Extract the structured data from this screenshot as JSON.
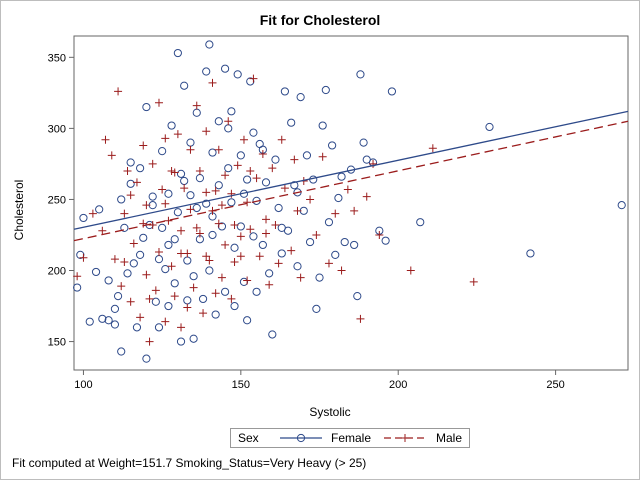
{
  "chart_data": {
    "type": "scatter",
    "title": "Fit for Cholesterol",
    "xlabel": "Systolic",
    "ylabel": "Cholesterol",
    "xlim": [
      97,
      273
    ],
    "ylim": [
      130,
      365
    ],
    "xticks": [
      100,
      150,
      200,
      250
    ],
    "yticks": [
      150,
      200,
      250,
      300,
      350
    ],
    "grid": false,
    "legend": {
      "title": "Sex",
      "placement": "bottom-center",
      "entries": [
        {
          "name": "Female",
          "marker": "circle",
          "line": "solid"
        },
        {
          "name": "Male",
          "marker": "plus",
          "line": "dashed"
        }
      ]
    },
    "colors": {
      "female": "#2e4a8a",
      "male": "#9b1c1c",
      "frame": "#666666"
    },
    "fit_lines": [
      {
        "name": "Female",
        "x": [
          97,
          273
        ],
        "y": [
          229,
          312
        ]
      },
      {
        "name": "Male",
        "x": [
          97,
          273
        ],
        "y": [
          221,
          305
        ]
      }
    ],
    "series": [
      {
        "name": "Female",
        "marker": "circle",
        "points": [
          [
            98,
            188
          ],
          [
            99,
            211
          ],
          [
            100,
            237
          ],
          [
            102,
            164
          ],
          [
            104,
            199
          ],
          [
            105,
            243
          ],
          [
            106,
            166
          ],
          [
            108,
            165
          ],
          [
            108,
            193
          ],
          [
            110,
            162
          ],
          [
            110,
            173
          ],
          [
            111,
            182
          ],
          [
            112,
            143
          ],
          [
            113,
            230
          ],
          [
            114,
            198
          ],
          [
            115,
            261
          ],
          [
            115,
            276
          ],
          [
            116,
            205
          ],
          [
            117,
            160
          ],
          [
            118,
            272
          ],
          [
            119,
            223
          ],
          [
            120,
            315
          ],
          [
            120,
            138
          ],
          [
            121,
            232
          ],
          [
            122,
            246
          ],
          [
            123,
            178
          ],
          [
            124,
            208
          ],
          [
            124,
            160
          ],
          [
            125,
            284
          ],
          [
            125,
            230
          ],
          [
            126,
            201
          ],
          [
            127,
            254
          ],
          [
            127,
            175
          ],
          [
            128,
            302
          ],
          [
            129,
            222
          ],
          [
            129,
            191
          ],
          [
            130,
            353
          ],
          [
            130,
            241
          ],
          [
            131,
            268
          ],
          [
            131,
            150
          ],
          [
            132,
            330
          ],
          [
            133,
            207
          ],
          [
            133,
            179
          ],
          [
            134,
            290
          ],
          [
            134,
            253
          ],
          [
            135,
            196
          ],
          [
            135,
            152
          ],
          [
            136,
            311
          ],
          [
            137,
            265
          ],
          [
            137,
            222
          ],
          [
            138,
            180
          ],
          [
            139,
            340
          ],
          [
            139,
            247
          ],
          [
            140,
            359
          ],
          [
            140,
            200
          ],
          [
            141,
            283
          ],
          [
            141,
            225
          ],
          [
            142,
            169
          ],
          [
            143,
            305
          ],
          [
            143,
            260
          ],
          [
            144,
            231
          ],
          [
            145,
            342
          ],
          [
            145,
            185
          ],
          [
            146,
            272
          ],
          [
            147,
            312
          ],
          [
            147,
            248
          ],
          [
            148,
            216
          ],
          [
            148,
            175
          ],
          [
            149,
            338
          ],
          [
            150,
            281
          ],
          [
            150,
            231
          ],
          [
            151,
            192
          ],
          [
            152,
            264
          ],
          [
            152,
            165
          ],
          [
            153,
            333
          ],
          [
            154,
            297
          ],
          [
            154,
            224
          ],
          [
            155,
            249
          ],
          [
            155,
            185
          ],
          [
            156,
            289
          ],
          [
            157,
            218
          ],
          [
            158,
            262
          ],
          [
            159,
            198
          ],
          [
            160,
            155
          ],
          [
            161,
            278
          ],
          [
            162,
            244
          ],
          [
            163,
            212
          ],
          [
            164,
            326
          ],
          [
            165,
            228
          ],
          [
            166,
            304
          ],
          [
            167,
            260
          ],
          [
            168,
            203
          ],
          [
            169,
            322
          ],
          [
            170,
            242
          ],
          [
            171,
            281
          ],
          [
            172,
            220
          ],
          [
            173,
            264
          ],
          [
            174,
            173
          ],
          [
            175,
            195
          ],
          [
            176,
            302
          ],
          [
            177,
            327
          ],
          [
            178,
            234
          ],
          [
            179,
            288
          ],
          [
            180,
            211
          ],
          [
            181,
            251
          ],
          [
            182,
            266
          ],
          [
            183,
            220
          ],
          [
            185,
            271
          ],
          [
            186,
            218
          ],
          [
            187,
            182
          ],
          [
            188,
            338
          ],
          [
            189,
            290
          ],
          [
            190,
            278
          ],
          [
            192,
            276
          ],
          [
            194,
            228
          ],
          [
            196,
            221
          ],
          [
            198,
            326
          ],
          [
            207,
            234
          ],
          [
            229,
            301
          ],
          [
            242,
            212
          ],
          [
            271,
            246
          ],
          [
            112,
            250
          ],
          [
            118,
            211
          ],
          [
            122,
            252
          ],
          [
            127,
            218
          ],
          [
            132,
            263
          ],
          [
            136,
            244
          ],
          [
            141,
            238
          ],
          [
            146,
            300
          ],
          [
            151,
            254
          ],
          [
            157,
            285
          ],
          [
            163,
            230
          ],
          [
            168,
            255
          ]
        ]
      },
      {
        "name": "Male",
        "marker": "plus",
        "points": [
          [
            98,
            196
          ],
          [
            100,
            209
          ],
          [
            103,
            240
          ],
          [
            106,
            228
          ],
          [
            107,
            292
          ],
          [
            109,
            281
          ],
          [
            110,
            208
          ],
          [
            111,
            326
          ],
          [
            112,
            189
          ],
          [
            113,
            240
          ],
          [
            114,
            270
          ],
          [
            115,
            178
          ],
          [
            116,
            219
          ],
          [
            117,
            262
          ],
          [
            118,
            167
          ],
          [
            119,
            288
          ],
          [
            120,
            246
          ],
          [
            120,
            197
          ],
          [
            121,
            150
          ],
          [
            122,
            275
          ],
          [
            122,
            232
          ],
          [
            123,
            186
          ],
          [
            124,
            318
          ],
          [
            124,
            213
          ],
          [
            125,
            257
          ],
          [
            126,
            164
          ],
          [
            126,
            293
          ],
          [
            127,
            235
          ],
          [
            128,
            203
          ],
          [
            129,
            269
          ],
          [
            129,
            182
          ],
          [
            130,
            296
          ],
          [
            131,
            228
          ],
          [
            131,
            160
          ],
          [
            132,
            258
          ],
          [
            133,
            212
          ],
          [
            134,
            285
          ],
          [
            134,
            243
          ],
          [
            135,
            188
          ],
          [
            136,
            316
          ],
          [
            137,
            270
          ],
          [
            137,
            226
          ],
          [
            138,
            170
          ],
          [
            139,
            298
          ],
          [
            139,
            255
          ],
          [
            140,
            207
          ],
          [
            141,
            332
          ],
          [
            141,
            242
          ],
          [
            142,
            184
          ],
          [
            143,
            285
          ],
          [
            143,
            233
          ],
          [
            144,
            195
          ],
          [
            145,
            267
          ],
          [
            145,
            218
          ],
          [
            146,
            305
          ],
          [
            147,
            254
          ],
          [
            147,
            180
          ],
          [
            148,
            232
          ],
          [
            149,
            274
          ],
          [
            150,
            210
          ],
          [
            151,
            292
          ],
          [
            152,
            248
          ],
          [
            152,
            193
          ],
          [
            153,
            229
          ],
          [
            154,
            335
          ],
          [
            155,
            265
          ],
          [
            156,
            210
          ],
          [
            157,
            282
          ],
          [
            158,
            226
          ],
          [
            159,
            190
          ],
          [
            160,
            272
          ],
          [
            161,
            232
          ],
          [
            162,
            205
          ],
          [
            163,
            292
          ],
          [
            164,
            258
          ],
          [
            166,
            214
          ],
          [
            167,
            278
          ],
          [
            168,
            242
          ],
          [
            169,
            195
          ],
          [
            170,
            263
          ],
          [
            172,
            250
          ],
          [
            174,
            225
          ],
          [
            176,
            280
          ],
          [
            178,
            205
          ],
          [
            180,
            240
          ],
          [
            182,
            200
          ],
          [
            184,
            257
          ],
          [
            186,
            242
          ],
          [
            188,
            166
          ],
          [
            190,
            252
          ],
          [
            192,
            275
          ],
          [
            194,
            225
          ],
          [
            204,
            200
          ],
          [
            211,
            286
          ],
          [
            224,
            192
          ],
          [
            113,
            206
          ],
          [
            119,
            233
          ],
          [
            126,
            247
          ],
          [
            131,
            212
          ],
          [
            136,
            230
          ],
          [
            142,
            256
          ],
          [
            148,
            206
          ],
          [
            153,
            270
          ],
          [
            158,
            236
          ],
          [
            115,
            253
          ],
          [
            121,
            180
          ],
          [
            128,
            270
          ],
          [
            133,
            174
          ],
          [
            139,
            210
          ],
          [
            144,
            246
          ],
          [
            150,
            224
          ]
        ]
      }
    ]
  },
  "footnote": "Fit computed at Weight=151.7 Smoking_Status=Very Heavy (> 25)"
}
